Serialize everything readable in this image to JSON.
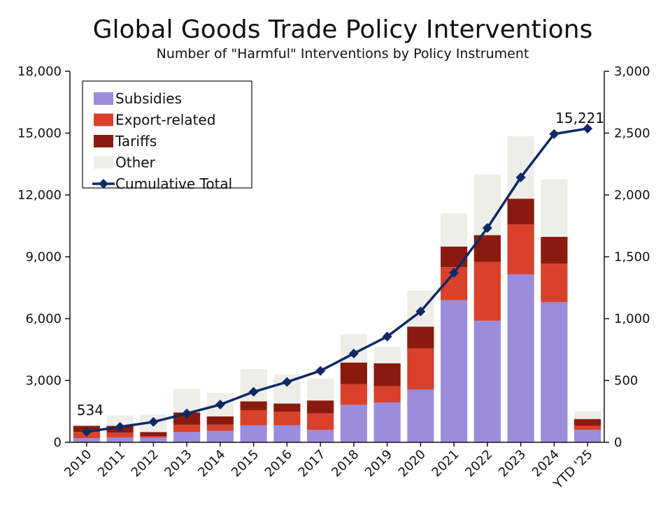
{
  "chart_data": {
    "type": "bar",
    "stacked": true,
    "title": "Global Goods Trade Policy Interventions",
    "subtitle": "Number of \"Harmful\" Interventions by Policy Instrument",
    "categories": [
      "2010",
      "2011",
      "2012",
      "2013",
      "2014",
      "2015",
      "2016",
      "2017",
      "2018",
      "2019",
      "2020",
      "2021",
      "2022",
      "2023",
      "2024",
      "YTD '25"
    ],
    "series": [
      {
        "name": "Subsidies",
        "color": "#9b8ddc",
        "axis": "left",
        "values": [
          200,
          230,
          230,
          500,
          560,
          830,
          830,
          600,
          1820,
          1930,
          2560,
          6900,
          5900,
          8150,
          6800,
          600
        ]
      },
      {
        "name": "Export-related",
        "color": "#d9412b",
        "axis": "left",
        "values": [
          300,
          240,
          70,
          350,
          300,
          730,
          650,
          800,
          1000,
          800,
          2000,
          1600,
          2850,
          2420,
          1870,
          200
        ]
      },
      {
        "name": "Tariffs",
        "color": "#8b1a0e",
        "axis": "left",
        "values": [
          300,
          330,
          200,
          600,
          400,
          430,
          400,
          630,
          1050,
          1100,
          1050,
          1000,
          1300,
          1250,
          1300,
          330
        ]
      },
      {
        "name": "Other",
        "color": "#eeeee8",
        "axis": "left",
        "values": [
          0,
          500,
          850,
          1150,
          1140,
          1560,
          1420,
          1070,
          1380,
          800,
          1750,
          1610,
          2950,
          3030,
          2780,
          370
        ]
      }
    ],
    "line": {
      "name": "Cumulative Total",
      "color": "#0d2a66",
      "axis": "right",
      "values": [
        85,
        125,
        165,
        233,
        305,
        408,
        488,
        578,
        718,
        855,
        1058,
        1370,
        1733,
        2142,
        2493,
        2537
      ]
    },
    "annotations": [
      {
        "category": "2010",
        "text": "534"
      },
      {
        "category": "YTD '25",
        "text": "15,221"
      }
    ],
    "ylim_left": [
      0,
      18000
    ],
    "yticks_left": [
      "0",
      "3,000",
      "6,000",
      "9,000",
      "12,000",
      "15,000",
      "18,000"
    ],
    "ylim_right": [
      0,
      3000
    ],
    "yticks_right": [
      "0",
      "500",
      "1,000",
      "1,500",
      "2,000",
      "2,500",
      "3,000"
    ],
    "legend": [
      "Subsidies",
      "Export-related",
      "Tariffs",
      "Other",
      "Cumulative Total"
    ],
    "legend_position": "top-left"
  }
}
